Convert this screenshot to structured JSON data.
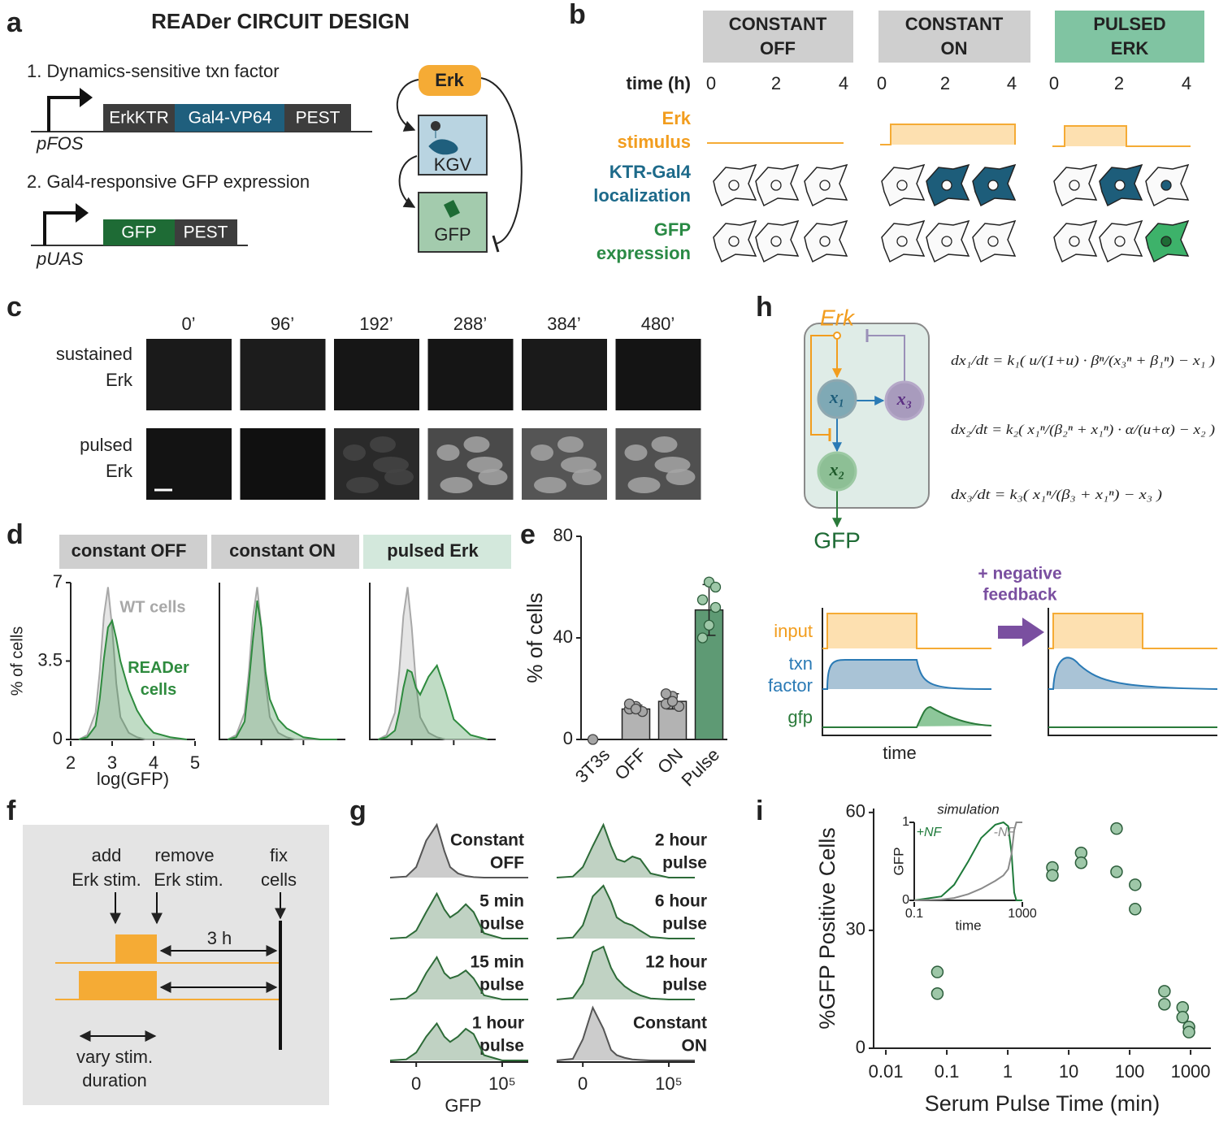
{
  "panels": {
    "letters": [
      "a",
      "b",
      "c",
      "d",
      "e",
      "f",
      "g",
      "h",
      "i"
    ],
    "a": {
      "title": "READer CIRCUIT DESIGN",
      "step1": "1. Dynamics-sensitive txn factor",
      "step1_parts": [
        "ErkKTR",
        "Gal4-VP64",
        "PEST"
      ],
      "promoter1": "pFOS",
      "step2": "2. Gal4-responsive GFP expression",
      "step2_parts": [
        "GFP",
        "PEST"
      ],
      "promoter2": "pUAS",
      "nodes": [
        "Erk",
        "KGV",
        "GFP"
      ]
    },
    "b": {
      "conditions": [
        [
          "CONSTANT",
          "OFF"
        ],
        [
          "CONSTANT",
          "ON"
        ],
        [
          "PULSED",
          "ERK"
        ]
      ],
      "time_label": "time (h)",
      "time_ticks": [
        "0",
        "2",
        "4"
      ],
      "rows": [
        [
          "Erk",
          "stimulus"
        ],
        [
          "KTR-Gal4",
          "localization"
        ],
        [
          "GFP",
          "expression"
        ]
      ]
    },
    "c": {
      "times": [
        "0’",
        "96’",
        "192’",
        "288’",
        "384’",
        "480’"
      ],
      "rows": [
        [
          "sustained",
          "Erk"
        ],
        [
          "pulsed",
          "Erk"
        ]
      ]
    },
    "f": {
      "add": [
        "add",
        "Erk stim."
      ],
      "remove": [
        "remove",
        "Erk stim."
      ],
      "fix": [
        "fix",
        "cells"
      ],
      "interval": "3 h",
      "vary": [
        "vary stim.",
        "duration"
      ]
    },
    "h": {
      "input_node": "Erk",
      "nodes": [
        "x₁",
        "x₃",
        "x₂"
      ],
      "output": "GFP",
      "equations": [
        "dx₁/dt = k₁( u/(1+u) · βⁿ/(x₃ⁿ + β₁ⁿ) − x₁ )",
        "dx₂/dt = k₂( x₁ⁿ/(β₂ⁿ + x₁ⁿ) · α/(u+α) − x₂ )",
        "dx₃/dt = k₃( x₁ⁿ/(β₃ + x₁ⁿ) − x₃ )"
      ],
      "feedback": [
        "+ negative",
        "feedback"
      ],
      "plot_labels": {
        "input": "input",
        "txn": [
          "txn",
          "factor"
        ],
        "gfp": "gfp",
        "time": "time"
      }
    }
  },
  "chart_data": [
    {
      "type": "area",
      "title": "constant OFF",
      "x": [
        2.2,
        2.4,
        2.6,
        2.7,
        2.8,
        2.9,
        3.0,
        3.1,
        3.2,
        3.4,
        3.6,
        3.8,
        4.0,
        4.4,
        4.8
      ],
      "series": [
        {
          "name": "WT cells",
          "color": "#a8a8a8",
          "values": [
            0,
            0.2,
            1.2,
            3,
            5.5,
            6.8,
            5,
            2.5,
            1,
            0.3,
            0.1,
            0,
            0,
            0,
            0
          ]
        },
        {
          "name": "READer cells",
          "color": "#2e8b3e",
          "values": [
            0,
            0.1,
            0.6,
            1.8,
            3.6,
            5,
            5.3,
            4.5,
            3.5,
            2.2,
            1.3,
            0.7,
            0.3,
            0.1,
            0
          ]
        }
      ],
      "xlim": [
        2,
        5
      ],
      "ylim": [
        0,
        7
      ],
      "xticks": [
        2,
        3,
        4,
        5
      ],
      "yticks": [
        0,
        3.5,
        7
      ],
      "xlabel": "log(GFP)",
      "ylabel": "% of cells"
    },
    {
      "type": "area",
      "title": "constant ON",
      "x": [
        2.2,
        2.4,
        2.6,
        2.7,
        2.8,
        2.9,
        3.0,
        3.1,
        3.2,
        3.4,
        3.6,
        3.8,
        4.0,
        4.4,
        4.8
      ],
      "series": [
        {
          "color": "#a8a8a8",
          "values": [
            0,
            0.2,
            1.2,
            3,
            5.5,
            6.8,
            5,
            2.5,
            1,
            0.3,
            0.1,
            0,
            0,
            0,
            0
          ]
        },
        {
          "color": "#2e8b3e",
          "values": [
            0,
            0.1,
            0.8,
            2.5,
            4.5,
            6.2,
            5,
            3,
            1.8,
            0.9,
            0.5,
            0.3,
            0.1,
            0,
            0
          ]
        }
      ],
      "xlim": [
        2,
        5
      ],
      "ylim": [
        0,
        7
      ]
    },
    {
      "type": "area",
      "title": "pulsed Erk",
      "x": [
        2.2,
        2.4,
        2.6,
        2.7,
        2.8,
        2.9,
        3.0,
        3.1,
        3.2,
        3.4,
        3.6,
        3.8,
        4.0,
        4.4,
        4.8
      ],
      "series": [
        {
          "color": "#a8a8a8",
          "values": [
            0,
            0.2,
            1.2,
            3,
            5.5,
            6.8,
            5,
            2.5,
            1,
            0.3,
            0.1,
            0,
            0,
            0,
            0
          ]
        },
        {
          "color": "#2e8b3e",
          "values": [
            0,
            0.1,
            0.4,
            1.2,
            2.3,
            3.1,
            3,
            2.3,
            2,
            2.8,
            3.3,
            2.2,
            0.9,
            0.2,
            0
          ]
        }
      ],
      "xlim": [
        2,
        5
      ],
      "ylim": [
        0,
        7
      ]
    },
    {
      "type": "bar",
      "categories": [
        "3T3s",
        "OFF",
        "ON",
        "Pulse"
      ],
      "values": [
        0,
        12,
        15,
        51
      ],
      "errors": [
        0,
        1.5,
        3,
        10
      ],
      "points": [
        [
          0
        ],
        [
          12,
          13,
          11,
          14,
          12
        ],
        [
          14,
          17,
          13,
          18,
          15
        ],
        [
          40,
          45,
          52,
          55,
          62,
          60
        ]
      ],
      "colors": [
        "#a0a0a0",
        "#b3b3b3",
        "#b3b3b3",
        "#5e9a74"
      ],
      "ylim": [
        0,
        80
      ],
      "yticks": [
        0,
        40,
        80
      ],
      "ylabel": "% of cells"
    },
    {
      "type": "area",
      "label": [
        "Constant",
        "OFF"
      ],
      "xscale": "biexponential",
      "xlim": [
        -500,
        1000000
      ],
      "ylim": [
        0,
        1
      ],
      "x": [
        -500,
        -100,
        0,
        100,
        300,
        600,
        1000,
        2000,
        4000,
        8000,
        20000,
        100000,
        1000000
      ],
      "series": [
        {
          "color": "#555555",
          "values": [
            0,
            0.02,
            0.2,
            0.7,
            1,
            0.5,
            0.2,
            0.08,
            0.03,
            0.01,
            0,
            0,
            0
          ]
        }
      ]
    },
    {
      "type": "area",
      "label": [
        "5 min",
        "pulse"
      ],
      "xscale": "biexponential",
      "xlim": [
        -500,
        1000000
      ],
      "ylim": [
        0,
        1
      ],
      "x": [
        -500,
        -100,
        0,
        100,
        300,
        600,
        1000,
        2000,
        4000,
        8000,
        20000,
        100000,
        1000000
      ],
      "series": [
        {
          "color": "#2d6b38",
          "values": [
            0,
            0.02,
            0.15,
            0.5,
            0.85,
            0.55,
            0.4,
            0.5,
            0.65,
            0.5,
            0.1,
            0,
            0
          ]
        }
      ]
    },
    {
      "type": "area",
      "label": [
        "15 min",
        "pulse"
      ],
      "xscale": "biexponential",
      "xlim": [
        -500,
        1000000
      ],
      "ylim": [
        0,
        1
      ],
      "x": [
        -500,
        -100,
        0,
        100,
        300,
        600,
        1000,
        2000,
        4000,
        8000,
        20000,
        100000,
        1000000
      ],
      "series": [
        {
          "color": "#2d6b38",
          "values": [
            0,
            0.02,
            0.15,
            0.5,
            0.8,
            0.5,
            0.4,
            0.45,
            0.55,
            0.4,
            0.08,
            0,
            0
          ]
        }
      ]
    },
    {
      "type": "area",
      "label": [
        "1 hour",
        "pulse"
      ],
      "xscale": "biexponential",
      "xlim": [
        -500,
        1000000
      ],
      "ylim": [
        0,
        1
      ],
      "x": [
        -500,
        -100,
        0,
        100,
        300,
        600,
        1000,
        2000,
        4000,
        8000,
        20000,
        100000,
        1000000
      ],
      "series": [
        {
          "color": "#2d6b38",
          "values": [
            0,
            0.02,
            0.15,
            0.45,
            0.7,
            0.45,
            0.35,
            0.45,
            0.6,
            0.5,
            0.1,
            0,
            0
          ]
        }
      ],
      "xticks": [
        0,
        {
          "value": 100000,
          "label": "10⁵"
        }
      ],
      "xlabel": "GFP"
    },
    {
      "type": "area",
      "label": [
        "2 hour",
        "pulse"
      ],
      "xscale": "biexponential",
      "xlim": [
        -500,
        1000000
      ],
      "ylim": [
        0,
        1
      ],
      "x": [
        -500,
        -100,
        0,
        100,
        300,
        600,
        1000,
        2000,
        4000,
        8000,
        20000,
        100000,
        1000000
      ],
      "series": [
        {
          "color": "#2d6b38",
          "values": [
            0,
            0.02,
            0.2,
            0.6,
            1,
            0.6,
            0.35,
            0.3,
            0.4,
            0.35,
            0.08,
            0,
            0
          ]
        }
      ]
    },
    {
      "type": "area",
      "label": [
        "6 hour",
        "pulse"
      ],
      "xscale": "biexponential",
      "xlim": [
        -500,
        1000000
      ],
      "ylim": [
        0,
        1
      ],
      "x": [
        -500,
        -100,
        0,
        100,
        300,
        600,
        1000,
        2000,
        4000,
        8000,
        20000,
        100000,
        1000000
      ],
      "series": [
        {
          "color": "#2d6b38",
          "values": [
            0,
            0.02,
            0.25,
            0.8,
            1,
            0.7,
            0.4,
            0.3,
            0.25,
            0.15,
            0.03,
            0,
            0
          ]
        }
      ]
    },
    {
      "type": "area",
      "label": [
        "12 hour",
        "pulse"
      ],
      "xscale": "biexponential",
      "xlim": [
        -500,
        1000000
      ],
      "ylim": [
        0,
        1
      ],
      "x": [
        -500,
        -100,
        0,
        100,
        300,
        600,
        1000,
        2000,
        4000,
        8000,
        20000,
        100000,
        1000000
      ],
      "series": [
        {
          "color": "#2d6b38",
          "values": [
            0,
            0.03,
            0.3,
            0.9,
            1,
            0.6,
            0.4,
            0.25,
            0.15,
            0.08,
            0.02,
            0,
            0
          ]
        }
      ]
    },
    {
      "type": "area",
      "label": [
        "Constant",
        "ON"
      ],
      "xscale": "biexponential",
      "xlim": [
        -500,
        1000000
      ],
      "ylim": [
        0,
        1
      ],
      "x": [
        -500,
        -100,
        0,
        100,
        300,
        600,
        1000,
        2000,
        4000,
        8000,
        20000,
        100000,
        1000000
      ],
      "series": [
        {
          "color": "#555555",
          "values": [
            0,
            0.03,
            0.4,
            1,
            0.6,
            0.2,
            0.1,
            0.05,
            0.02,
            0.01,
            0,
            0,
            0
          ]
        }
      ],
      "xticks": [
        0,
        {
          "value": 100000,
          "label": "10⁵"
        }
      ]
    },
    {
      "type": "scatter",
      "x": [
        0.07,
        0.07,
        5.4,
        5.4,
        16,
        16,
        61,
        61,
        123,
        123,
        372,
        372,
        740,
        740,
        940,
        940
      ],
      "values": [
        19.4,
        13.9,
        46,
        44,
        49.7,
        47.2,
        55.9,
        44.9,
        41.6,
        35.4,
        14.5,
        11.2,
        10.4,
        7.9,
        5.4,
        4.1
      ],
      "color": "#9ec7a8",
      "xscale": "log",
      "xlim": [
        0.0063,
        2150
      ],
      "ylim": [
        0,
        61
      ],
      "xticks": [
        0.01,
        0.1,
        1,
        10,
        100,
        1000
      ],
      "yticks": [
        0,
        30,
        60
      ],
      "xlabel": "Serum Pulse Time (min)",
      "ylabel": "%GFP Positive Cells"
    },
    {
      "type": "line",
      "title": "simulation",
      "x": [
        0.1,
        1,
        3,
        10,
        30,
        100,
        200,
        300,
        400,
        500,
        600,
        1000
      ],
      "series": [
        {
          "name": "+NF",
          "color": "#1e7a3a",
          "values": [
            0,
            0.05,
            0.2,
            0.5,
            0.8,
            0.97,
            1,
            0.95,
            0.6,
            0.1,
            0,
            0
          ]
        },
        {
          "name": "-NF",
          "color": "#8a8a8a",
          "values": [
            0,
            0.01,
            0.03,
            0.08,
            0.15,
            0.25,
            0.32,
            0.4,
            0.6,
            0.9,
            1,
            1
          ]
        }
      ],
      "xscale": "log",
      "xlim": [
        0.1,
        1000
      ],
      "ylim": [
        0,
        1
      ],
      "xticks": [
        0.1,
        1000
      ],
      "yticks": [
        0,
        1
      ],
      "xlabel": "time",
      "ylabel": "GFP"
    }
  ]
}
